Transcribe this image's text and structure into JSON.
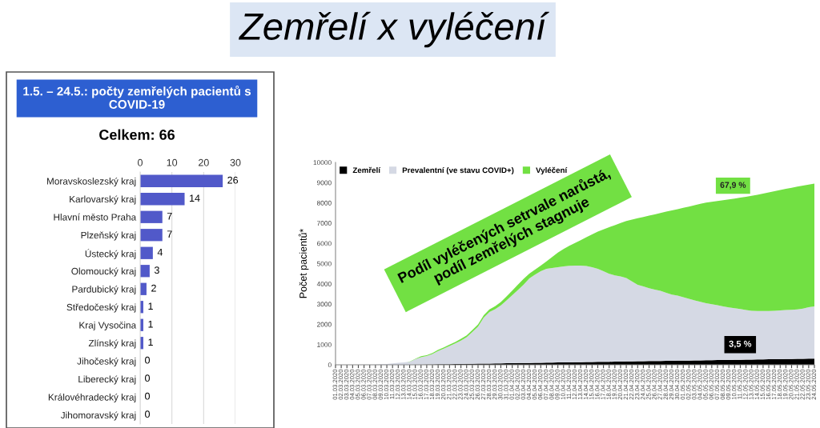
{
  "chart_data": [
    {
      "type": "bar",
      "orientation": "horizontal",
      "title": "1.5. – 24.5.: počty zemřelých pacientů s COVID-19",
      "subtitle": "Celkem: 66",
      "annotations": [
        "Zemřelí x vyléčení"
      ],
      "categories": [
        "Moravskoslezský kraj",
        "Karlovarský kraj",
        "Hlavní město Praha",
        "Plzeňský kraj",
        "Ústecký kraj",
        "Olomoucký kraj",
        "Pardubický kraj",
        "Středočeský kraj",
        "Kraj Vysočina",
        "Zlínský kraj",
        "Jihočeský kraj",
        "Liberecký kraj",
        "Královéhradecký kraj",
        "Jihomoravský kraj"
      ],
      "values": [
        26,
        14,
        7,
        7,
        4,
        3,
        2,
        1,
        1,
        1,
        0,
        0,
        0,
        0
      ],
      "color": "#5159c9",
      "xlim": [
        0,
        30
      ],
      "xticks": [
        0,
        10,
        20,
        30
      ],
      "grid": "x",
      "data_labels": true
    },
    {
      "type": "area",
      "stacked": true,
      "ylabel": "Počet pacientů*",
      "legend": "top left",
      "ylim": [
        0,
        10000
      ],
      "yticks": [
        0,
        1000,
        2000,
        3000,
        4000,
        5000,
        6000,
        7000,
        8000,
        9000,
        10000
      ],
      "annotations": [
        "Podíl vyléčených setrvale narůstá,\npodíl zemřelých stagnuje",
        "67,9 %",
        "3,5 %"
      ],
      "categories": [
        "01.03.2020",
        "02.03.2020",
        "03.03.2020",
        "04.03.2020",
        "05.03.2020",
        "06.03.2020",
        "07.03.2020",
        "08.03.2020",
        "09.03.2020",
        "10.03.2020",
        "11.03.2020",
        "12.03.2020",
        "13.03.2020",
        "14.03.2020",
        "15.03.2020",
        "16.03.2020",
        "17.03.2020",
        "18.03.2020",
        "19.03.2020",
        "20.03.2020",
        "21.03.2020",
        "22.03.2020",
        "23.03.2020",
        "24.03.2020",
        "25.03.2020",
        "26.03.2020",
        "27.03.2020",
        "28.03.2020",
        "29.03.2020",
        "30.03.2020",
        "31.03.2020",
        "01.04.2020",
        "02.04.2020",
        "03.04.2020",
        "04.04.2020",
        "05.04.2020",
        "06.04.2020",
        "07.04.2020",
        "08.04.2020",
        "09.04.2020",
        "10.04.2020",
        "11.04.2020",
        "12.04.2020",
        "13.04.2020",
        "14.04.2020",
        "15.04.2020",
        "16.04.2020",
        "17.04.2020",
        "18.04.2020",
        "19.04.2020",
        "20.04.2020",
        "21.04.2020",
        "22.04.2020",
        "23.04.2020",
        "24.04.2020",
        "25.04.2020",
        "26.04.2020",
        "27.04.2020",
        "28.04.2020",
        "29.04.2020",
        "30.04.2020",
        "01.05.2020",
        "02.05.2020",
        "03.05.2020",
        "04.05.2020",
        "05.05.2020",
        "06.05.2020",
        "07.05.2020",
        "08.05.2020",
        "09.05.2020",
        "10.05.2020",
        "11.05.2020",
        "12.05.2020",
        "13.05.2020",
        "14.05.2020",
        "15.05.2020",
        "16.05.2020",
        "17.05.2020",
        "18.05.2020",
        "19.05.2020",
        "20.05.2020",
        "21.05.2020",
        "22.05.2020",
        "23.05.2020",
        "24.05.2020"
      ],
      "series": [
        {
          "name": "Zemřelí",
          "color": "#000000",
          "values": [
            0,
            0,
            0,
            0,
            0,
            0,
            0,
            0,
            0,
            0,
            0,
            0,
            0,
            0,
            10,
            10,
            20,
            20,
            30,
            30,
            30,
            40,
            40,
            50,
            50,
            60,
            60,
            60,
            70,
            70,
            80,
            80,
            90,
            90,
            90,
            100,
            100,
            110,
            110,
            120,
            120,
            120,
            130,
            130,
            140,
            140,
            150,
            150,
            150,
            160,
            160,
            170,
            170,
            180,
            180,
            190,
            190,
            190,
            200,
            200,
            210,
            210,
            210,
            220,
            220,
            230,
            230,
            240,
            240,
            240,
            250,
            250,
            260,
            260,
            270,
            270,
            280,
            280,
            280,
            290,
            290,
            300,
            300,
            310,
            310
          ]
        },
        {
          "name": "Prevalentní (ve stavu COVID+)",
          "color": "#d5d9e4",
          "values": [
            0,
            0,
            0,
            0,
            0,
            10,
            10,
            10,
            30,
            40,
            70,
            100,
            120,
            150,
            270,
            370,
            410,
            510,
            650,
            770,
            900,
            1020,
            1160,
            1310,
            1570,
            1830,
            2270,
            2550,
            2680,
            2860,
            3100,
            3360,
            3610,
            3870,
            4180,
            4360,
            4520,
            4630,
            4670,
            4700,
            4740,
            4770,
            4770,
            4770,
            4740,
            4680,
            4590,
            4470,
            4350,
            4260,
            4210,
            4120,
            3950,
            3770,
            3690,
            3590,
            3530,
            3470,
            3360,
            3270,
            3210,
            3130,
            3050,
            2960,
            2890,
            2810,
            2760,
            2700,
            2650,
            2600,
            2550,
            2510,
            2450,
            2410,
            2390,
            2390,
            2380,
            2390,
            2410,
            2420,
            2430,
            2440,
            2480,
            2540,
            2580
          ]
        },
        {
          "name": "Vyléčení",
          "color": "#72e043",
          "values": [
            0,
            0,
            0,
            0,
            0,
            0,
            0,
            0,
            0,
            0,
            0,
            0,
            0,
            10,
            20,
            40,
            40,
            50,
            60,
            60,
            70,
            70,
            80,
            90,
            100,
            110,
            120,
            130,
            150,
            170,
            200,
            230,
            260,
            290,
            240,
            240,
            280,
            370,
            550,
            720,
            860,
            990,
            1120,
            1260,
            1420,
            1620,
            1840,
            2070,
            2300,
            2480,
            2640,
            2810,
            3050,
            3290,
            3430,
            3590,
            3710,
            3840,
            4010,
            4160,
            4270,
            4420,
            4560,
            4710,
            4840,
            4970,
            5060,
            5150,
            5240,
            5330,
            5410,
            5500,
            5590,
            5680,
            5740,
            5800,
            5860,
            5910,
            5950,
            5990,
            6030,
            6060,
            6070,
            6050,
            6060
          ]
        }
      ]
    }
  ]
}
